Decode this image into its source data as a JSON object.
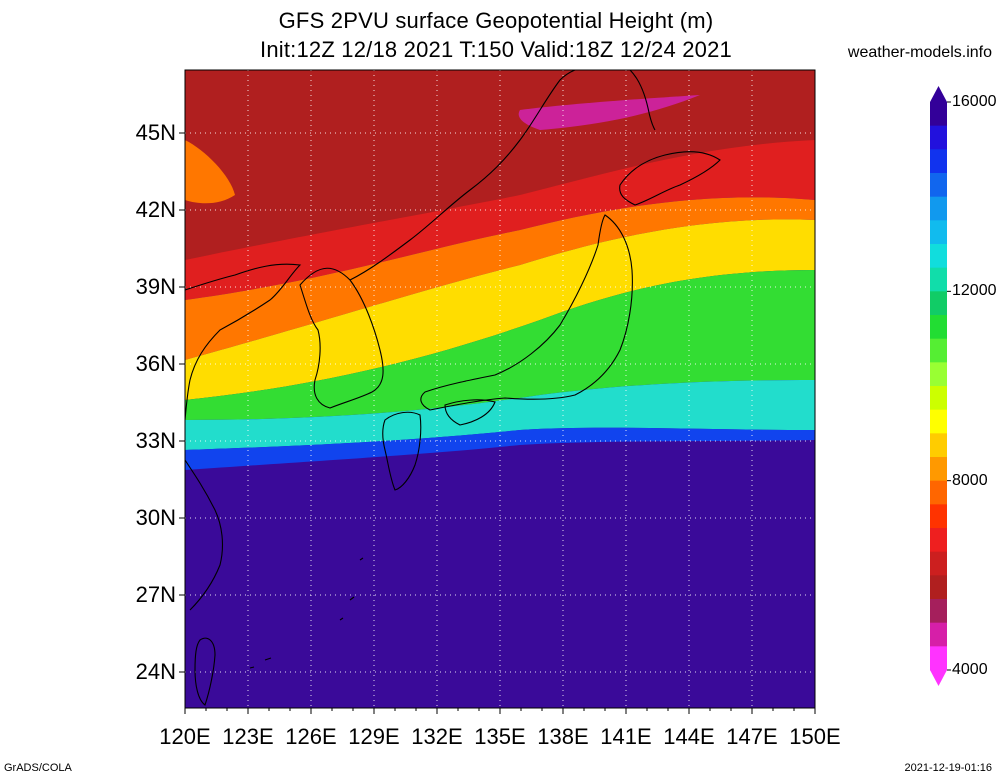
{
  "title_line1": "GFS 2PVU surface Geopotential Height (m)",
  "title_line2": "Init:12Z 12/18 2021 T:150 Valid:18Z 12/24 2021",
  "site": "weather-models.info",
  "lat_labels": [
    "45N",
    "42N",
    "39N",
    "36N",
    "33N",
    "30N",
    "27N",
    "24N"
  ],
  "lon_labels": [
    "120E",
    "123E",
    "126E",
    "129E",
    "132E",
    "135E",
    "138E",
    "141E",
    "144E",
    "147E",
    "150E"
  ],
  "colorbar": {
    "labels": [
      "16000",
      "12000",
      "8000",
      "4000"
    ],
    "min": 4000,
    "max": 16000,
    "colors": [
      "#ff33ff",
      "#d61fa8",
      "#a51f5c",
      "#b01f1f",
      "#cc1f1f",
      "#ee1f1f",
      "#ff3300",
      "#ff6600",
      "#ff9900",
      "#ffcc00",
      "#ffff00",
      "#ccff00",
      "#99ff33",
      "#55ee33",
      "#22dd33",
      "#11cc66",
      "#11ddaa",
      "#11dddd",
      "#11bbee",
      "#1199ee",
      "#1166ee",
      "#1133ee",
      "#2211dd",
      "#330099"
    ]
  },
  "footer_left": "GrADS/COLA",
  "footer_right": "2021-12-19-01:16",
  "field_colors": {
    "north": "#b01f1f",
    "red": "#e01f1f",
    "orange": "#ff7700",
    "yellow": "#ffdd00",
    "green": "#33dd33",
    "cyan": "#22ddcc",
    "blue": "#1144ee",
    "south": "#3a0a99",
    "magenta": "#cc2299"
  }
}
